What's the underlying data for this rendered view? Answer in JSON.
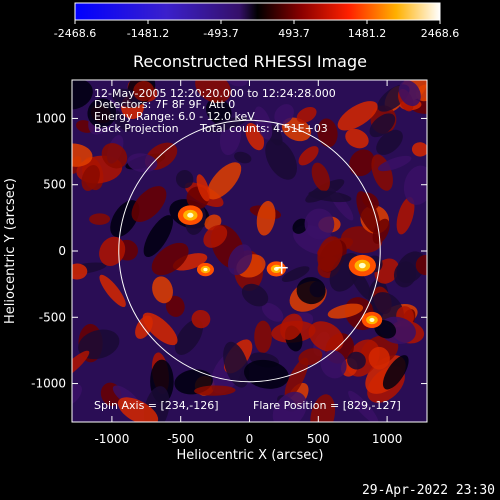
{
  "colorbar": {
    "ticks": [
      "-2468.6",
      "-1481.2",
      "-493.7",
      "493.7",
      "1481.2",
      "2468.6"
    ],
    "range": [
      -2468.6,
      2468.6
    ]
  },
  "chart_data": {
    "type": "heatmap",
    "title": "Reconstructed RHESSI Image",
    "xlabel": "Heliocentric X (arcsec)",
    "ylabel": "Heliocentric Y (arcsec)",
    "xlim": [
      -1290,
      1290
    ],
    "ylim": [
      -1290,
      1290
    ],
    "xticks": [
      "-1000",
      "-500",
      "0",
      "500",
      "1000"
    ],
    "yticks": [
      "1000",
      "500",
      "0",
      "-500",
      "-1000"
    ],
    "xtick_values": [
      -1000,
      -500,
      0,
      500,
      1000
    ],
    "ytick_values": [
      1000,
      500,
      0,
      -500,
      -1000
    ],
    "solar_limb_radius_arcsec": 950,
    "crosshair": [
      234,
      -126
    ],
    "hot_spots": [
      {
        "x": -430,
        "y": 270,
        "value": 2200
      },
      {
        "x": 820,
        "y": -110,
        "value": 2400
      },
      {
        "x": 195,
        "y": -135,
        "value": 1700
      },
      {
        "x": 890,
        "y": -520,
        "value": 1800
      },
      {
        "x": -320,
        "y": -140,
        "value": 1500
      }
    ],
    "annotations": [
      "12-May-2005 12:20:20.000 to 12:24:28.000",
      "Detectors: 7F 8F 9F, Att 0",
      "Energy Range: 6.0 - 12.0 keV",
      "Back Projection",
      "Total counts: 4.51E+03",
      "Spin Axis = [234,-126]",
      "Flare Position = [829,-127]"
    ]
  },
  "footer": {
    "date": "29-Apr-2022 23:30"
  }
}
